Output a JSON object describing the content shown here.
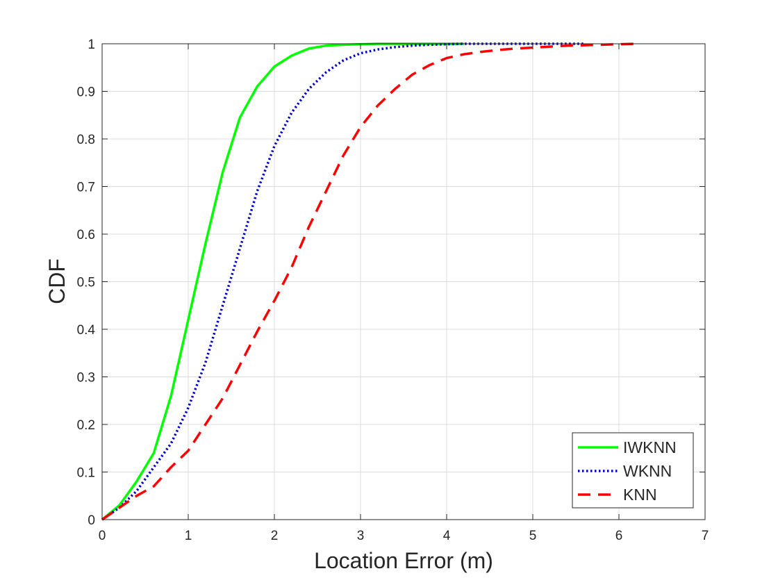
{
  "chart_data": {
    "type": "line",
    "title": "",
    "xlabel": "Location Error (m)",
    "ylabel": "CDF",
    "xlim": [
      0,
      7
    ],
    "ylim": [
      0,
      1
    ],
    "x_ticks": [
      "0",
      "1",
      "2",
      "3",
      "4",
      "5",
      "6",
      "7"
    ],
    "y_ticks": [
      "0",
      "0.1",
      "0.2",
      "0.3",
      "0.4",
      "0.5",
      "0.6",
      "0.7",
      "0.8",
      "0.9",
      "1"
    ],
    "grid": true,
    "legend_position": "bottom-right",
    "series": [
      {
        "name": "IWKNN",
        "color": "#00ff00",
        "line_style": "solid",
        "x": [
          0,
          0.2,
          0.4,
          0.6,
          0.8,
          1.0,
          1.2,
          1.4,
          1.6,
          1.8,
          2.0,
          2.2,
          2.4,
          2.6,
          2.8,
          3.0,
          3.2,
          3.4,
          3.6,
          3.8,
          4.0,
          4.2
        ],
        "y": [
          0,
          0.03,
          0.08,
          0.14,
          0.26,
          0.42,
          0.58,
          0.73,
          0.845,
          0.91,
          0.952,
          0.975,
          0.99,
          0.996,
          0.998,
          0.999,
          1.0,
          1.0,
          1.0,
          1.0,
          1.0,
          1.0
        ]
      },
      {
        "name": "WKNN",
        "color": "#0000cc",
        "line_style": "dotted",
        "x": [
          0,
          0.2,
          0.4,
          0.6,
          0.8,
          1.0,
          1.2,
          1.4,
          1.6,
          1.8,
          2.0,
          2.2,
          2.4,
          2.6,
          2.8,
          3.0,
          3.2,
          3.4,
          3.6,
          3.8,
          4.0,
          4.2,
          4.6,
          5.0,
          5.6
        ],
        "y": [
          0,
          0.025,
          0.06,
          0.11,
          0.16,
          0.235,
          0.33,
          0.45,
          0.57,
          0.69,
          0.785,
          0.855,
          0.905,
          0.94,
          0.965,
          0.98,
          0.988,
          0.993,
          0.996,
          0.998,
          0.999,
          1.0,
          1.0,
          1.0,
          1.0
        ]
      },
      {
        "name": "KNN",
        "color": "#ff0000",
        "line_style": "dashed",
        "x": [
          0,
          0.2,
          0.4,
          0.6,
          0.8,
          1.0,
          1.2,
          1.4,
          1.6,
          1.8,
          2.0,
          2.2,
          2.4,
          2.6,
          2.8,
          3.0,
          3.2,
          3.4,
          3.6,
          3.8,
          4.0,
          4.2,
          4.4,
          4.6,
          4.8,
          5.0,
          5.2,
          5.4,
          5.6,
          5.8,
          6.0,
          6.2
        ],
        "y": [
          0,
          0.025,
          0.05,
          0.07,
          0.11,
          0.145,
          0.2,
          0.255,
          0.325,
          0.395,
          0.46,
          0.53,
          0.615,
          0.69,
          0.765,
          0.825,
          0.87,
          0.905,
          0.935,
          0.955,
          0.97,
          0.978,
          0.983,
          0.987,
          0.99,
          0.992,
          0.994,
          0.996,
          0.997,
          0.998,
          0.999,
          1.0
        ]
      }
    ]
  }
}
